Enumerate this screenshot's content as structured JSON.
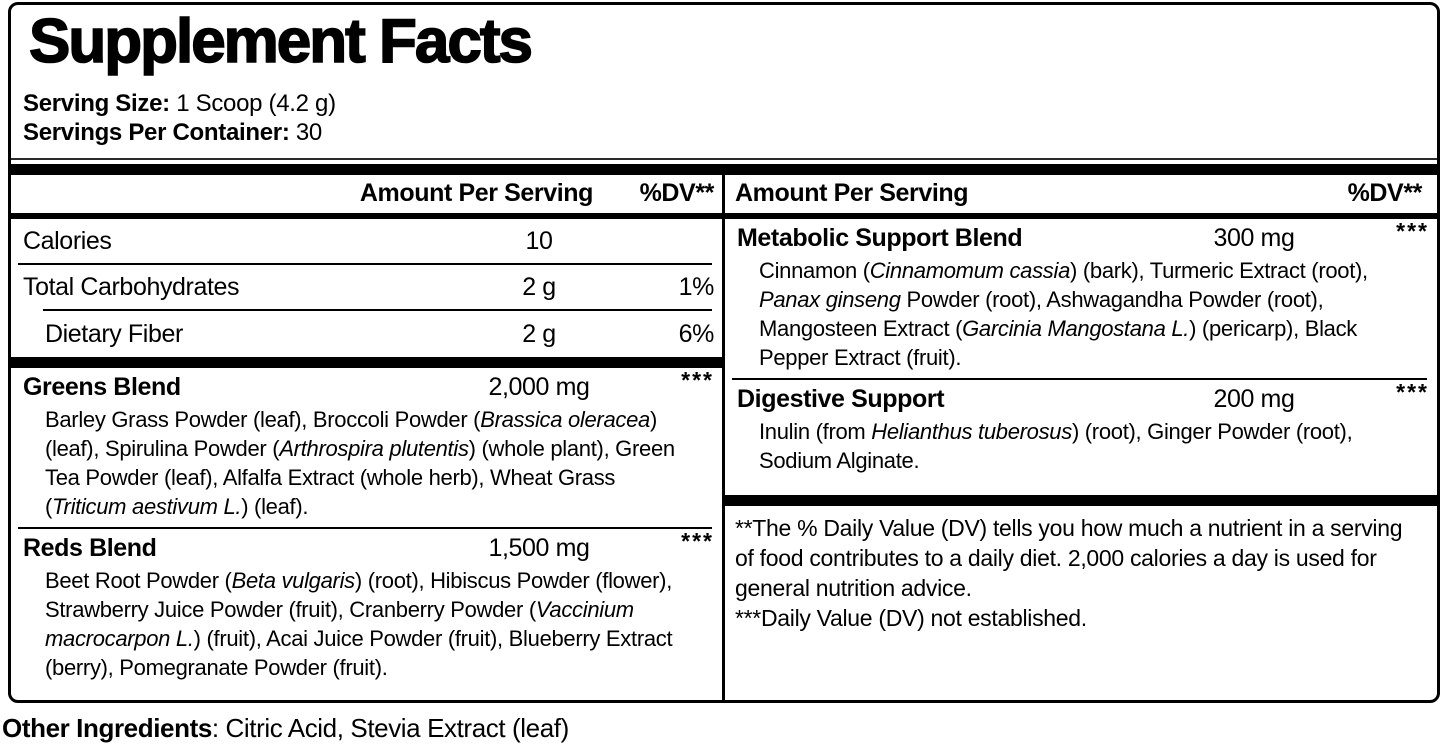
{
  "title": "Supplement Facts",
  "serving": {
    "size_label": "Serving Size:",
    "size_value": " 1 Scoop (4.2 g)",
    "container_label": "Servings Per Container:",
    "container_value": " 30"
  },
  "table": {
    "left": {
      "header": {
        "amount": "Amount Per Serving",
        "dv": "%DV**"
      },
      "nutrients": [
        {
          "name": "Calories",
          "amount": "10",
          "dv": ""
        },
        {
          "name": "Total Carbohydrates",
          "amount": "2 g",
          "dv": "1%"
        },
        {
          "name": "Dietary Fiber",
          "amount": "2 g",
          "dv": "6%"
        }
      ],
      "blends": [
        {
          "name": "Greens Blend",
          "amount": "2,000 mg",
          "dv": "***",
          "ingredients": [
            {
              "t": "Barley Grass Powder (leaf), Broccoli Powder ("
            },
            {
              "t": "Brassica oleracea",
              "i": true
            },
            {
              "t": ") (leaf), Spirulina Powder ("
            },
            {
              "t": "Arthrospira plutentis",
              "i": true
            },
            {
              "t": ") (whole plant), Green Tea Powder (leaf), Alfalfa Extract (whole herb), Wheat Grass ("
            },
            {
              "t": "Triticum aestivum L.",
              "i": true
            },
            {
              "t": ") (leaf)."
            }
          ]
        },
        {
          "name": "Reds Blend",
          "amount": "1,500 mg",
          "dv": "***",
          "ingredients": [
            {
              "t": "Beet Root Powder ("
            },
            {
              "t": "Beta vulgaris",
              "i": true
            },
            {
              "t": ") (root), Hibiscus Powder (flower), Strawberry Juice Powder (fruit), Cranberry Powder ("
            },
            {
              "t": "Vaccinium macrocarpon L.",
              "i": true
            },
            {
              "t": ") (fruit), Acai Juice Powder (fruit), Blueberry Extract (berry), Pomegranate Powder (fruit)."
            }
          ]
        }
      ]
    },
    "right": {
      "header": {
        "amount": "Amount Per Serving",
        "dv": "%DV**"
      },
      "blends": [
        {
          "name": "Metabolic Support Blend",
          "amount": "300 mg",
          "dv": "***",
          "ingredients": [
            {
              "t": "Cinnamon ("
            },
            {
              "t": "Cinnamomum cassia",
              "i": true
            },
            {
              "t": ") (bark), Turmeric Extract (root), "
            },
            {
              "t": "Panax ginseng",
              "i": true
            },
            {
              "t": " Powder (root), Ashwagandha Powder (root), Mangosteen Extract ("
            },
            {
              "t": "Garcinia Mangostana L.",
              "i": true
            },
            {
              "t": ") (pericarp), Black Pepper Extract (fruit)."
            }
          ]
        },
        {
          "name": "Digestive Support",
          "amount": "200 mg",
          "dv": "***",
          "ingredients": [
            {
              "t": "Inulin (from "
            },
            {
              "t": "Helianthus tuberosus",
              "i": true
            },
            {
              "t": ") (root), Ginger Powder (root), Sodium Alginate."
            }
          ]
        }
      ],
      "footnotes": [
        "**The % Daily Value (DV) tells you how much a nutrient in a serving of food contributes to a daily diet. 2,000 calories a day is used for general nutrition advice.",
        "***Daily Value (DV) not established."
      ]
    }
  },
  "other_ingredients": {
    "label": "Other Ingredients",
    "value": ": Citric Acid, Stevia Extract (leaf)"
  },
  "colors": {
    "ink": "#000000",
    "background": "#ffffff"
  }
}
